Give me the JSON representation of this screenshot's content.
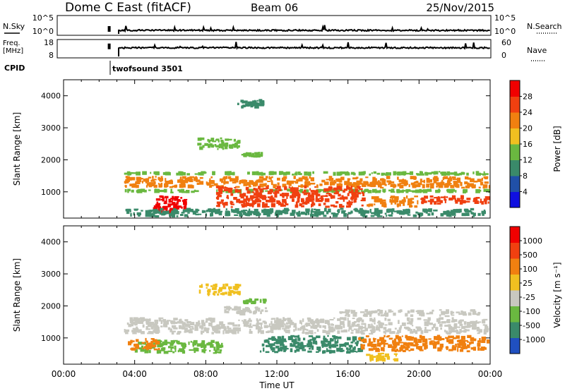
{
  "header": {
    "site": "Dome C East (fitACF)",
    "beam": "Beam 06",
    "date": "25/Nov/2015"
  },
  "status_panels": {
    "nsky_label": "N.Sky",
    "nsky_ticks": [
      "10^5",
      "10^0"
    ],
    "nsearch_label": "N.Search",
    "nsearch_ticks": [
      "10^5",
      "10^0"
    ],
    "freq_label_1": "Freq.",
    "freq_label_2": "[MHz]",
    "freq_ticks": [
      "18",
      "8"
    ],
    "nave_label": "Nave",
    "nave_ticks": [
      "60",
      "0"
    ],
    "cpid_label": "CPID",
    "cpid_value": "twofsound 3501",
    "data_start_hour": 3.4,
    "noise_level": 0.25,
    "freq_level": 0.55,
    "gap_hour": 2.8
  },
  "chart_data": [
    {
      "type": "heatmap",
      "panel": "power",
      "ylabel": "Slant Range [km]",
      "ylim": [
        180,
        4500
      ],
      "yticks": [
        "1000",
        "2000",
        "3000",
        "4000"
      ],
      "yticks_values": [
        1000,
        2000,
        3000,
        4000
      ],
      "xlim": [
        0,
        24
      ],
      "colorbar_label": "Power [dB]",
      "colorbar_ticks": [
        "4",
        "8",
        "12",
        "16",
        "20",
        "24",
        "28"
      ],
      "colorbar_colors": [
        "#1010e0",
        "#2050a8",
        "#3a8a6a",
        "#6ab840",
        "#f0c020",
        "#f08010",
        "#f04010",
        "#f00000"
      ],
      "regions": [
        {
          "t0": 3.4,
          "t1": 24.0,
          "r0": 1100,
          "r1": 1500,
          "color": "#f08010"
        },
        {
          "t0": 3.4,
          "t1": 24.0,
          "r0": 1500,
          "r1": 1650,
          "color": "#6ab840"
        },
        {
          "t0": 3.4,
          "t1": 24.0,
          "r0": 950,
          "r1": 1100,
          "color": "#6ab840"
        },
        {
          "t0": 5.0,
          "t1": 7.0,
          "r0": 300,
          "r1": 900,
          "color": "#f00000"
        },
        {
          "t0": 8.5,
          "t1": 17.0,
          "r0": 500,
          "r1": 1200,
          "color": "#f04010"
        },
        {
          "t0": 17.0,
          "t1": 20.0,
          "r0": 500,
          "r1": 900,
          "color": "#f08010"
        },
        {
          "t0": 20.0,
          "t1": 24.0,
          "r0": 600,
          "r1": 900,
          "color": "#f04010"
        },
        {
          "t0": 7.5,
          "t1": 10.0,
          "r0": 2300,
          "r1": 2700,
          "color": "#6ab840"
        },
        {
          "t0": 10.0,
          "t1": 11.5,
          "r0": 2050,
          "r1": 2250,
          "color": "#6ab840"
        },
        {
          "t0": 9.5,
          "t1": 11.5,
          "r0": 3600,
          "r1": 3900,
          "color": "#3a8a6a"
        },
        {
          "t0": 3.4,
          "t1": 24.0,
          "r0": 200,
          "r1": 500,
          "color": "#3a8a6a"
        }
      ]
    },
    {
      "type": "heatmap",
      "panel": "velocity",
      "ylabel": "Slant Range [km]",
      "ylim": [
        180,
        4500
      ],
      "yticks": [
        "1000",
        "2000",
        "3000",
        "4000"
      ],
      "yticks_values": [
        1000,
        2000,
        3000,
        4000
      ],
      "xlim": [
        0,
        24
      ],
      "xlabel": "Time UT",
      "xticks": [
        "00:00",
        "04:00",
        "08:00",
        "12:00",
        "16:00",
        "20:00",
        "00:00"
      ],
      "xticks_values": [
        0,
        4,
        8,
        12,
        16,
        20,
        24
      ],
      "colorbar_label": "Velocity [m s⁻¹]",
      "colorbar_ticks": [
        "1000",
        "500",
        "100",
        "25",
        "-25",
        "-100",
        "-500",
        "-1000"
      ],
      "colorbar_colors": [
        "#2050c0",
        "#3a8a6a",
        "#6ab840",
        "#c8c8c0",
        "#f0c020",
        "#f08010",
        "#f04010",
        "#f00000"
      ],
      "regions": [
        {
          "t0": 3.4,
          "t1": 24.0,
          "r0": 1100,
          "r1": 1650,
          "color": "#c8c8c0"
        },
        {
          "t0": 11.0,
          "t1": 17.0,
          "r0": 500,
          "r1": 1100,
          "color": "#3a8a6a"
        },
        {
          "t0": 4.0,
          "t1": 9.0,
          "r0": 500,
          "r1": 950,
          "color": "#6ab840"
        },
        {
          "t0": 3.5,
          "t1": 5.5,
          "r0": 600,
          "r1": 1000,
          "color": "#f08010"
        },
        {
          "t0": 16.5,
          "t1": 24.0,
          "r0": 550,
          "r1": 1100,
          "color": "#f08010"
        },
        {
          "t0": 17.0,
          "t1": 19.0,
          "r0": 250,
          "r1": 550,
          "color": "#f0c020"
        },
        {
          "t0": 7.5,
          "t1": 10.0,
          "r0": 2300,
          "r1": 2700,
          "color": "#f0c020"
        },
        {
          "t0": 10.0,
          "t1": 11.5,
          "r0": 2050,
          "r1": 2250,
          "color": "#6ab840"
        },
        {
          "t0": 9.0,
          "t1": 11.5,
          "r0": 1700,
          "r1": 2000,
          "color": "#c8c8c0"
        },
        {
          "t0": 15.5,
          "t1": 23.5,
          "r0": 1650,
          "r1": 1900,
          "color": "#c8c8c0"
        }
      ]
    }
  ]
}
